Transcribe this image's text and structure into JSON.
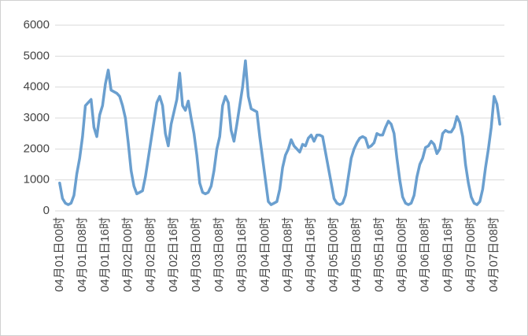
{
  "chart_data": {
    "type": "line",
    "categories": [
      "04月01日00时",
      null,
      null,
      null,
      null,
      null,
      null,
      null,
      "04月01日08时",
      null,
      null,
      null,
      null,
      null,
      null,
      null,
      "04月01日16时",
      null,
      null,
      null,
      null,
      null,
      null,
      null,
      "04月02日00时",
      null,
      null,
      null,
      null,
      null,
      null,
      null,
      "04月02日08时",
      null,
      null,
      null,
      null,
      null,
      null,
      null,
      "04月02日16时",
      null,
      null,
      null,
      null,
      null,
      null,
      null,
      "04月03日00时",
      null,
      null,
      null,
      null,
      null,
      null,
      null,
      "04月03日08时",
      null,
      null,
      null,
      null,
      null,
      null,
      null,
      "04月03日16时",
      null,
      null,
      null,
      null,
      null,
      null,
      null,
      "04月04日00时",
      null,
      null,
      null,
      null,
      null,
      null,
      null,
      "04月04日08时",
      null,
      null,
      null,
      null,
      null,
      null,
      null,
      "04月04日16时",
      null,
      null,
      null,
      null,
      null,
      null,
      null,
      "04月05日00时",
      null,
      null,
      null,
      null,
      null,
      null,
      null,
      "04月05日08时",
      null,
      null,
      null,
      null,
      null,
      null,
      null,
      "04月05日16时",
      null,
      null,
      null,
      null,
      null,
      null,
      null,
      "04月06日00时",
      null,
      null,
      null,
      null,
      null,
      null,
      null,
      "04月06日08时",
      null,
      null,
      null,
      null,
      null,
      null,
      null,
      "04月06日16时",
      null,
      null,
      null,
      null,
      null,
      null,
      null,
      "04月07日00时",
      null,
      null,
      null,
      null,
      null,
      null,
      null,
      "04月07日08时",
      null,
      null
    ],
    "values": [
      900,
      400,
      250,
      200,
      250,
      500,
      1200,
      1700,
      2400,
      3400,
      3500,
      3600,
      2700,
      2400,
      3100,
      3400,
      4100,
      4550,
      3900,
      3850,
      3800,
      3700,
      3400,
      3000,
      2200,
      1300,
      800,
      550,
      600,
      650,
      1100,
      1700,
      2300,
      2900,
      3500,
      3700,
      3400,
      2500,
      2100,
      2800,
      3200,
      3600,
      4450,
      3400,
      3250,
      3550,
      3000,
      2500,
      1800,
      900,
      600,
      550,
      600,
      800,
      1300,
      2000,
      2400,
      3400,
      3700,
      3500,
      2600,
      2250,
      2800,
      3400,
      4000,
      4850,
      3700,
      3300,
      3250,
      3200,
      2400,
      1700,
      1000,
      300,
      200,
      250,
      300,
      700,
      1400,
      1800,
      2000,
      2300,
      2100,
      2000,
      1900,
      2150,
      2100,
      2350,
      2450,
      2250,
      2450,
      2450,
      2400,
      1900,
      1400,
      900,
      400,
      250,
      200,
      250,
      500,
      1100,
      1700,
      2000,
      2200,
      2350,
      2400,
      2350,
      2050,
      2100,
      2200,
      2500,
      2450,
      2450,
      2700,
      2900,
      2800,
      2500,
      1700,
      1000,
      450,
      250,
      200,
      250,
      500,
      1100,
      1500,
      1700,
      2050,
      2100,
      2250,
      2150,
      1850,
      2000,
      2500,
      2600,
      2550,
      2550,
      2700,
      3050,
      2850,
      2400,
      1500,
      900,
      450,
      250,
      200,
      300,
      700,
      1400,
      2000,
      2700,
      3700,
      3450,
      2800
    ],
    "color": "#6a9fcf",
    "ylim": [
      0,
      6000
    ],
    "yticks": [
      0,
      1000,
      2000,
      3000,
      4000,
      5000,
      6000
    ],
    "grid": true
  }
}
